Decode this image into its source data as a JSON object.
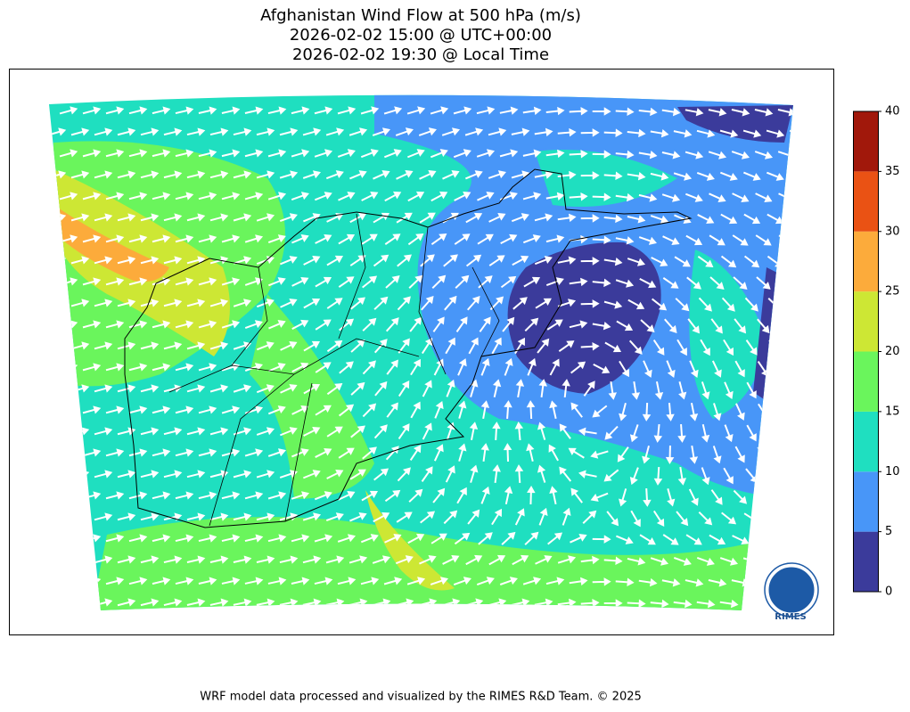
{
  "header": {
    "title_lines": [
      "Afghanistan Wind Flow at 500 hPa (m/s)",
      "2026-02-02 15:00 @ UTC+00:00",
      "2026-02-02 19:30 @ Local Time"
    ]
  },
  "colorbar": {
    "ticks": [
      0,
      5,
      10,
      15,
      20,
      25,
      30,
      35,
      40
    ],
    "colors": [
      "#3b3b9b",
      "#4896f8",
      "#1fdfc0",
      "#6af55c",
      "#cde734",
      "#fcab3b",
      "#ea5214",
      "#a1180b"
    ]
  },
  "logo": {
    "text": "RIMES"
  },
  "footer": {
    "text": "WRF model data processed and visualized by the RIMES R&D Team. © 2025"
  }
}
